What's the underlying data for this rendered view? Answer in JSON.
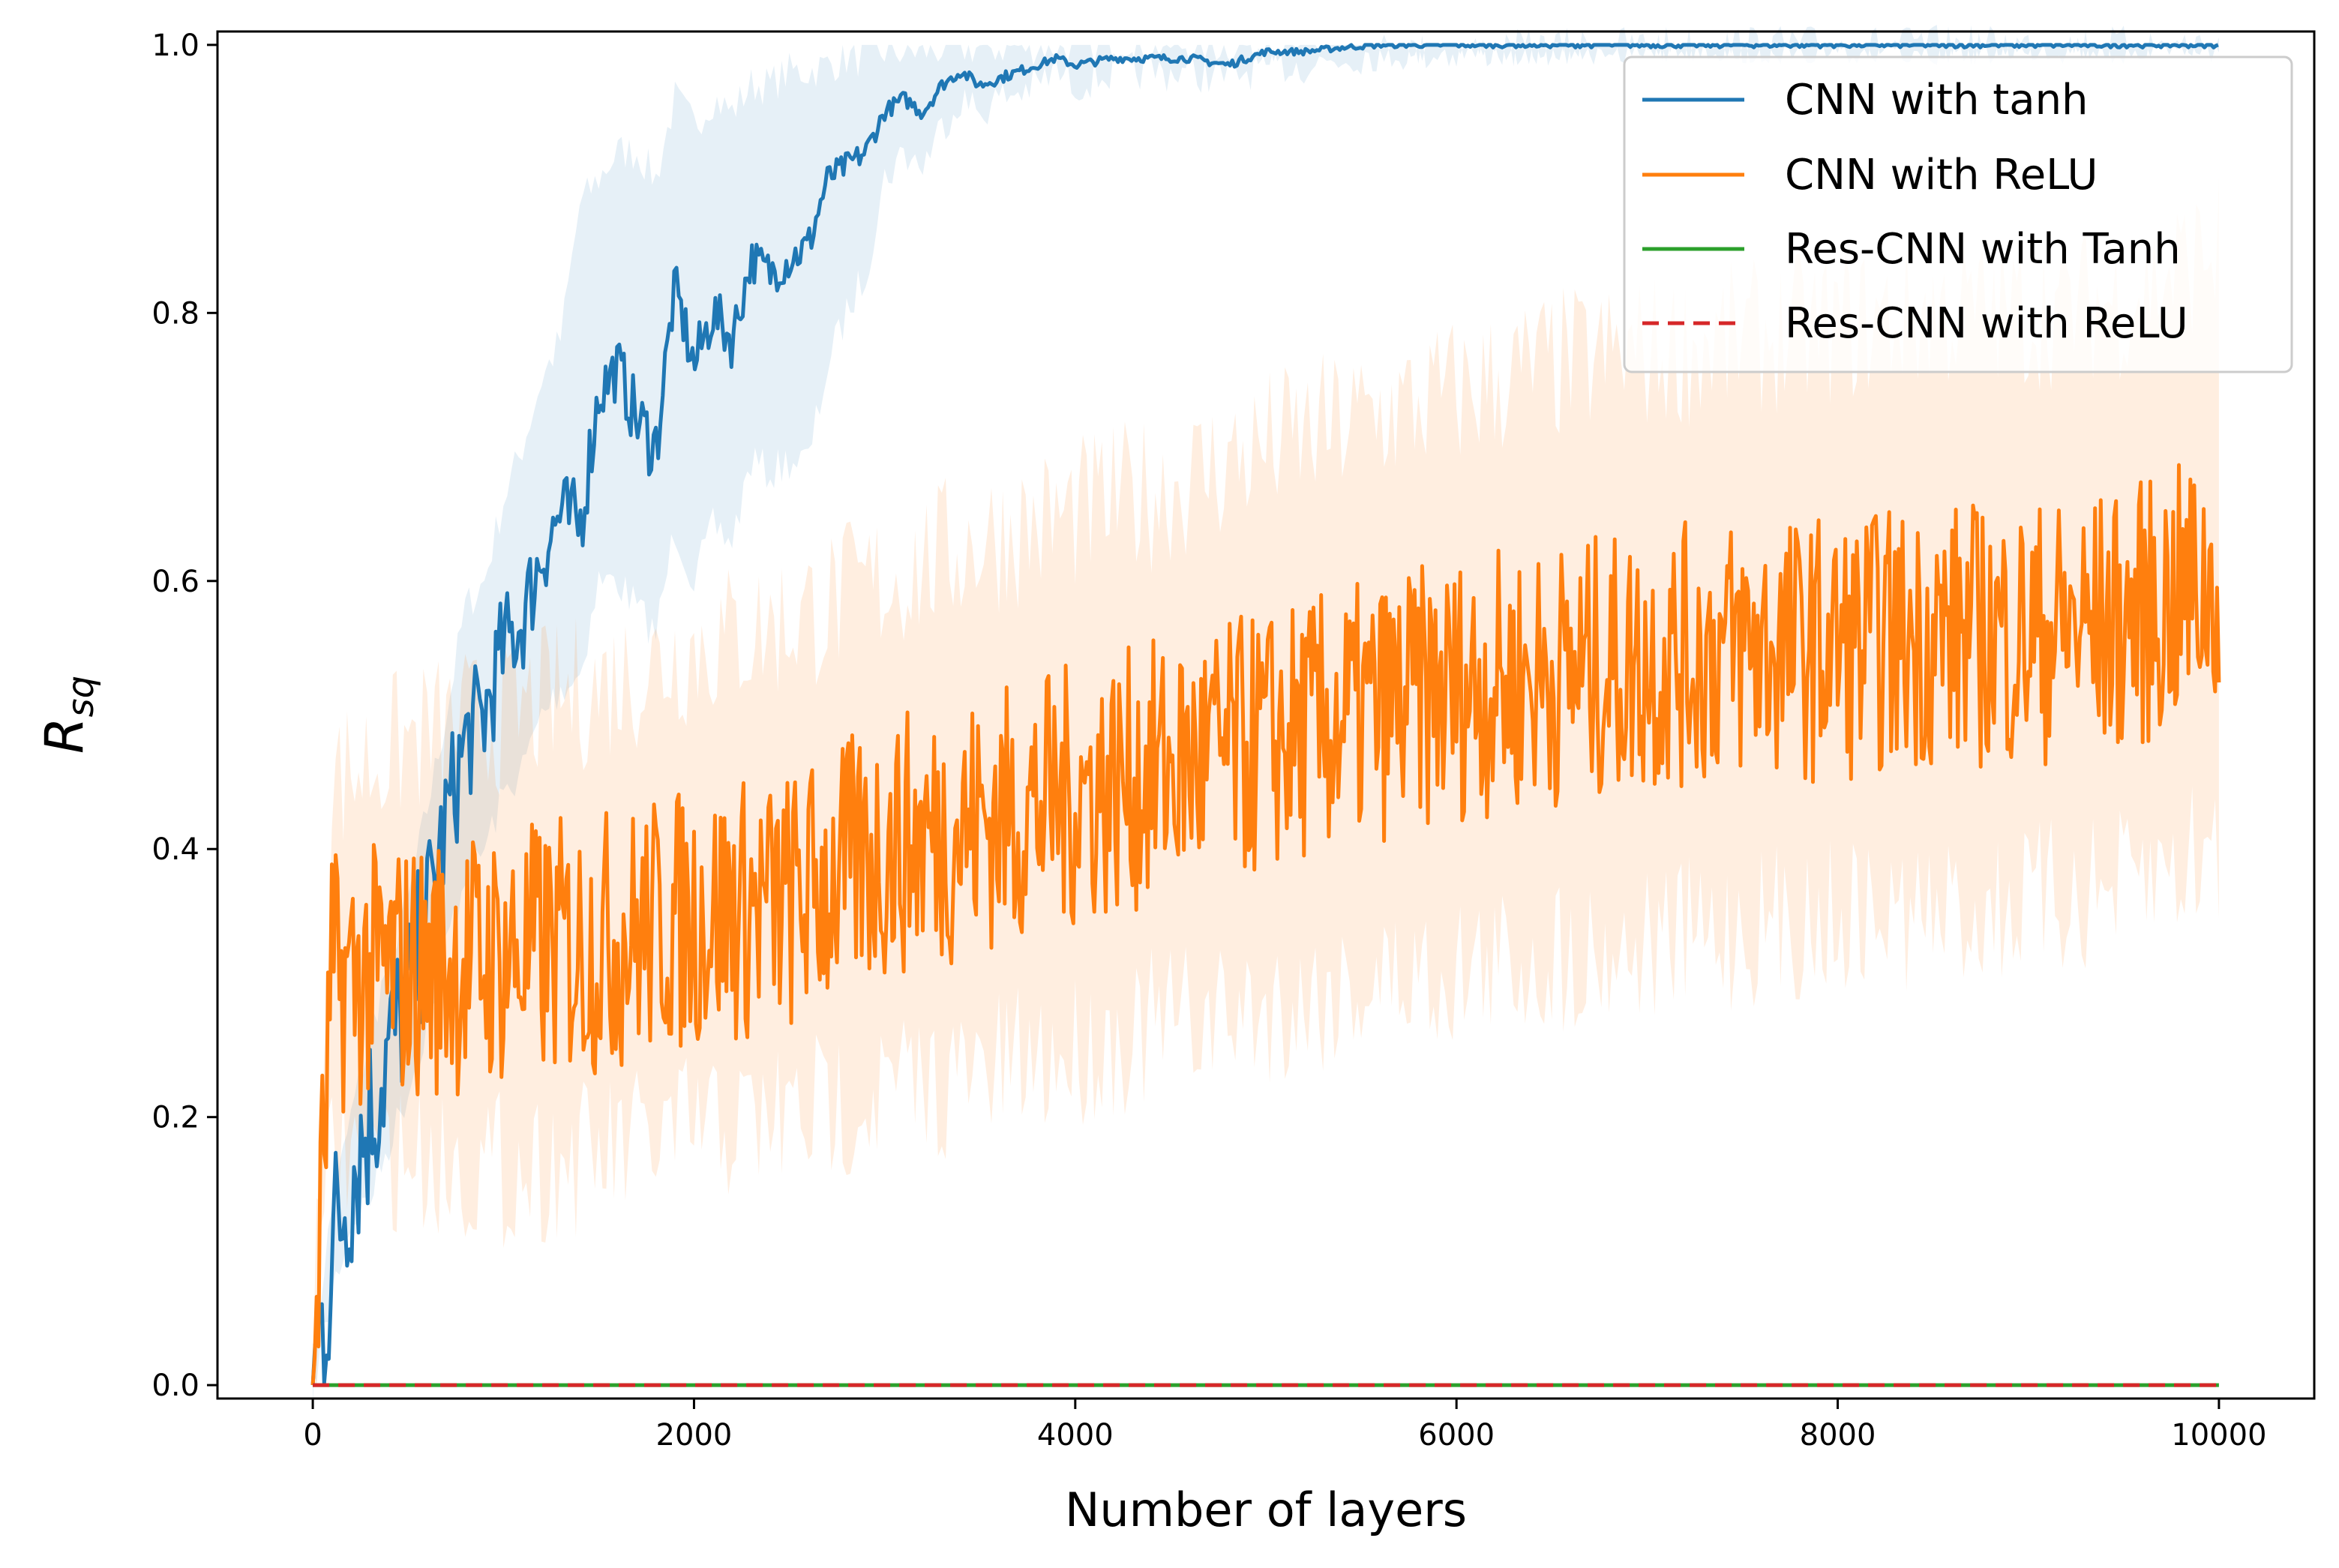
{
  "chart_data": {
    "type": "line",
    "xlabel": "Number of layers",
    "ylabel": {
      "base": "R",
      "subscript": "sq"
    },
    "xlim": [
      -500,
      10500
    ],
    "ylim": [
      -0.01,
      1.01
    ],
    "xticks": [
      0,
      2000,
      4000,
      6000,
      8000,
      10000
    ],
    "yticks": [
      0.0,
      0.2,
      0.4,
      0.6,
      0.8,
      1.0
    ],
    "xtick_labels": [
      "0",
      "2000",
      "4000",
      "6000",
      "8000",
      "10000"
    ],
    "ytick_labels": [
      "0.0",
      "0.2",
      "0.4",
      "0.6",
      "0.8",
      "1.0"
    ],
    "legend_position": "top-right",
    "series": [
      {
        "name": "CNN with tanh",
        "color": "#1f77b4",
        "line_style": "solid",
        "x": [
          0,
          50,
          100,
          200,
          300,
          400,
          500,
          600,
          700,
          800,
          900,
          1000,
          1100,
          1200,
          1300,
          1400,
          1500,
          1600,
          1700,
          1800,
          1900,
          2000,
          2100,
          2200,
          2300,
          2400,
          2500,
          2600,
          2700,
          2800,
          2900,
          3000,
          3100,
          3200,
          3300,
          3400,
          3500,
          3600,
          3700,
          3800,
          3900,
          4000,
          4200,
          4400,
          4600,
          4800,
          5000,
          5200,
          5400,
          5600,
          6000,
          6500,
          7000,
          8000,
          9000,
          10000
        ],
        "y": [
          0.0,
          0.05,
          0.1,
          0.16,
          0.2,
          0.25,
          0.29,
          0.35,
          0.42,
          0.48,
          0.5,
          0.55,
          0.57,
          0.62,
          0.65,
          0.64,
          0.74,
          0.76,
          0.72,
          0.7,
          0.82,
          0.76,
          0.8,
          0.78,
          0.84,
          0.83,
          0.84,
          0.85,
          0.9,
          0.91,
          0.92,
          0.95,
          0.96,
          0.95,
          0.97,
          0.98,
          0.97,
          0.975,
          0.98,
          0.985,
          0.99,
          0.985,
          0.99,
          0.99,
          0.99,
          0.985,
          0.995,
          0.995,
          0.998,
          1.0,
          1.0,
          1.0,
          1.0,
          1.0,
          1.0,
          1.0
        ],
        "band_lower": [
          0.0,
          0.03,
          0.07,
          0.12,
          0.14,
          0.18,
          0.22,
          0.27,
          0.33,
          0.38,
          0.4,
          0.44,
          0.46,
          0.5,
          0.52,
          0.53,
          0.6,
          0.6,
          0.58,
          0.56,
          0.64,
          0.6,
          0.64,
          0.63,
          0.69,
          0.68,
          0.69,
          0.69,
          0.76,
          0.8,
          0.83,
          0.9,
          0.92,
          0.91,
          0.94,
          0.96,
          0.95,
          0.96,
          0.965,
          0.97,
          0.98,
          0.97,
          0.98,
          0.98,
          0.98,
          0.975,
          0.985,
          0.985,
          0.99,
          0.995,
          0.995,
          0.998,
          1.0,
          1.0,
          1.0,
          1.0
        ],
        "band_upper": [
          0.0,
          0.08,
          0.13,
          0.2,
          0.26,
          0.32,
          0.36,
          0.43,
          0.5,
          0.58,
          0.6,
          0.66,
          0.7,
          0.75,
          0.78,
          0.88,
          0.9,
          0.92,
          0.92,
          0.9,
          0.96,
          0.94,
          0.96,
          0.95,
          0.97,
          0.97,
          0.98,
          0.98,
          0.985,
          0.99,
          0.99,
          0.995,
          0.995,
          0.995,
          0.997,
          0.998,
          0.998,
          0.998,
          0.999,
          0.999,
          1.0,
          1.0,
          1.0,
          1.0,
          1.0,
          1.0,
          1.0,
          1.0,
          1.0,
          1.0,
          1.0,
          1.0,
          1.0,
          1.0,
          1.0,
          1.0
        ]
      },
      {
        "name": "CNN with ReLU",
        "color": "#ff7f0e",
        "line_style": "solid",
        "x": [
          0,
          100,
          500,
          1000,
          1500,
          2000,
          2500,
          3000,
          3500,
          4000,
          4500,
          5000,
          5500,
          6000,
          6500,
          7000,
          7500,
          8000,
          8500,
          9000,
          9500,
          10000
        ],
        "y": [
          0.0,
          0.3,
          0.31,
          0.32,
          0.33,
          0.35,
          0.36,
          0.4,
          0.42,
          0.44,
          0.46,
          0.48,
          0.5,
          0.52,
          0.53,
          0.54,
          0.55,
          0.55,
          0.56,
          0.56,
          0.57,
          0.6
        ],
        "band_lower": [
          0.0,
          0.18,
          0.17,
          0.16,
          0.17,
          0.19,
          0.2,
          0.22,
          0.23,
          0.25,
          0.27,
          0.28,
          0.3,
          0.31,
          0.32,
          0.33,
          0.34,
          0.35,
          0.35,
          0.36,
          0.37,
          0.4
        ],
        "band_upper": [
          0.0,
          0.45,
          0.48,
          0.5,
          0.52,
          0.55,
          0.57,
          0.6,
          0.63,
          0.65,
          0.67,
          0.7,
          0.72,
          0.74,
          0.76,
          0.77,
          0.78,
          0.79,
          0.8,
          0.8,
          0.81,
          0.85
        ],
        "noise_amplitude": 0.1
      },
      {
        "name": "Res-CNN with Tanh",
        "color": "#2ca02c",
        "line_style": "solid",
        "x": [
          0,
          10000
        ],
        "y": [
          0.0,
          0.0
        ]
      },
      {
        "name": "Res-CNN with ReLU",
        "color": "#d62728",
        "line_style": "dashed",
        "x": [
          0,
          10000
        ],
        "y": [
          0.0,
          0.0
        ]
      }
    ]
  }
}
